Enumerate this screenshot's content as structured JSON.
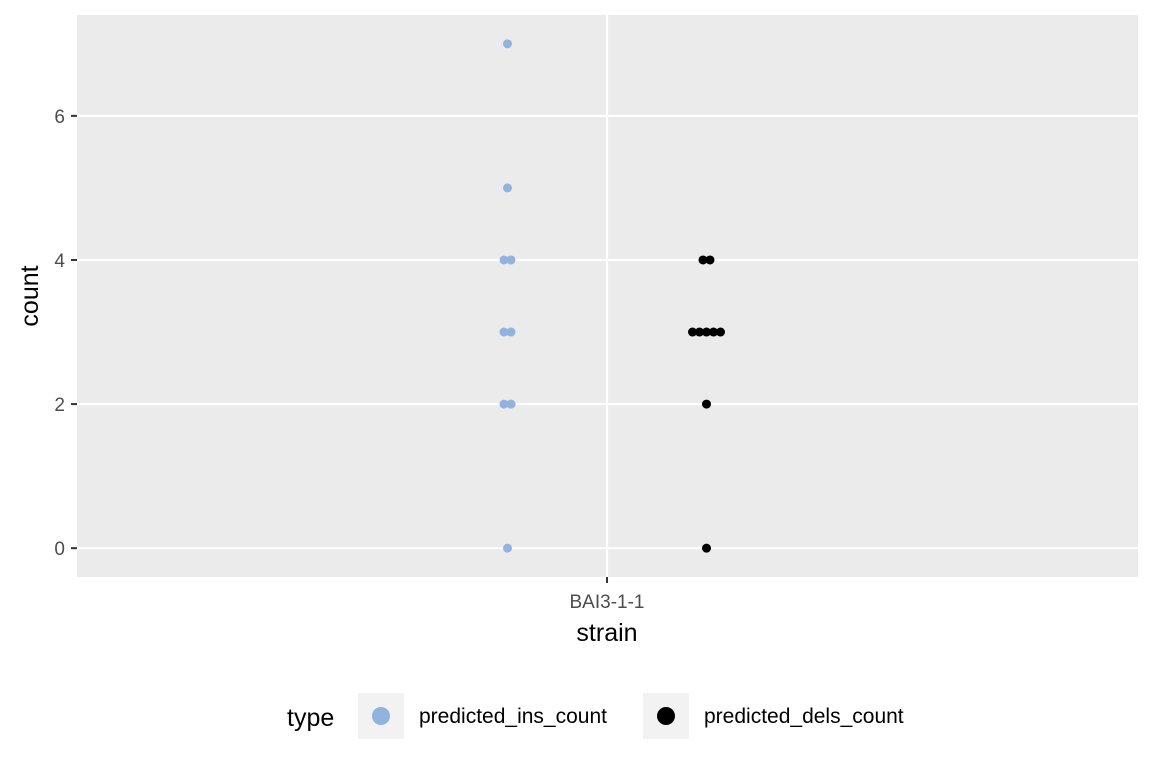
{
  "chart_data": {
    "type": "scatter",
    "xlabel": "strain",
    "ylabel": "count",
    "categories": [
      "BAI3-1-1"
    ],
    "ylim": [
      -0.4,
      7.4
    ],
    "yticks": [
      0,
      2,
      4,
      6
    ],
    "grid": true,
    "legend": {
      "title": "type",
      "position": "bottom"
    },
    "series": [
      {
        "name": "predicted_ins_count",
        "color": "#91b3e0",
        "category": "BAI3-1-1",
        "values": [
          0,
          2,
          2,
          3,
          3,
          4,
          4,
          5,
          7
        ]
      },
      {
        "name": "predicted_dels_count",
        "color": "#000000",
        "category": "BAI3-1-1",
        "values": [
          0,
          2,
          3,
          3,
          3,
          3,
          3,
          4,
          4
        ]
      }
    ]
  },
  "colors": {
    "panel_background": "#ebebeb",
    "grid": "#ffffff",
    "legend_key_background": "#f2f2f2"
  }
}
